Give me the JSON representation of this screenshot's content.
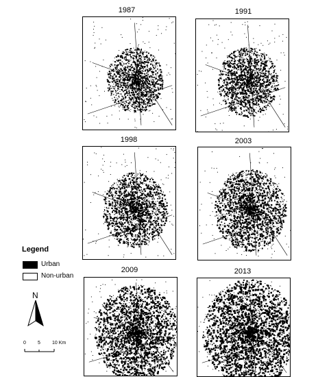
{
  "panels": [
    {
      "year": "1987",
      "density": 0.22
    },
    {
      "year": "1991",
      "density": 0.26
    },
    {
      "year": "1998",
      "density": 0.3
    },
    {
      "year": "2003",
      "density": 0.36
    },
    {
      "year": "2009",
      "density": 0.48
    },
    {
      "year": "2013",
      "density": 0.58
    }
  ],
  "legend": {
    "title": "Legend",
    "items": [
      {
        "label": "Urban",
        "color": "#000000"
      },
      {
        "label": "Non-urban",
        "color": "#ffffff"
      }
    ]
  },
  "north_arrow": {
    "letter": "N"
  },
  "scale_bar": {
    "ticks": [
      "0",
      "5",
      "10 Km"
    ]
  }
}
